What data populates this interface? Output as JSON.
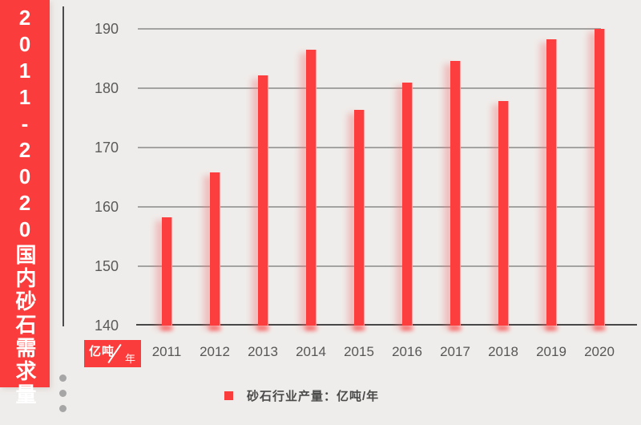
{
  "banner": {
    "title": "2011-2020国内砂石需求量",
    "bg_color": "#fb3c3c"
  },
  "axis_badge": {
    "numerator": "亿吨",
    "denominator": "年",
    "bg_color": "#fb3c3c"
  },
  "legend": {
    "label": "砂石行业产量：亿吨/年",
    "swatch_color": "#fb3c3c"
  },
  "chart_data": {
    "type": "bar",
    "title": "2011-2020国内砂石需求量",
    "categories": [
      "2011",
      "2012",
      "2013",
      "2014",
      "2015",
      "2016",
      "2017",
      "2018",
      "2019",
      "2020"
    ],
    "values": [
      158.2,
      165.8,
      182.2,
      186.5,
      176.4,
      181.0,
      184.6,
      177.8,
      188.2,
      190.0
    ],
    "xlabel": "",
    "ylabel": "亿吨/年",
    "ylim": [
      140,
      190
    ],
    "yticks": [
      140,
      150,
      160,
      170,
      180,
      190
    ],
    "grid": true,
    "legend_position": "bottom",
    "bar_color": "#fc3e3e"
  },
  "decor": {
    "dots_count": 3
  }
}
